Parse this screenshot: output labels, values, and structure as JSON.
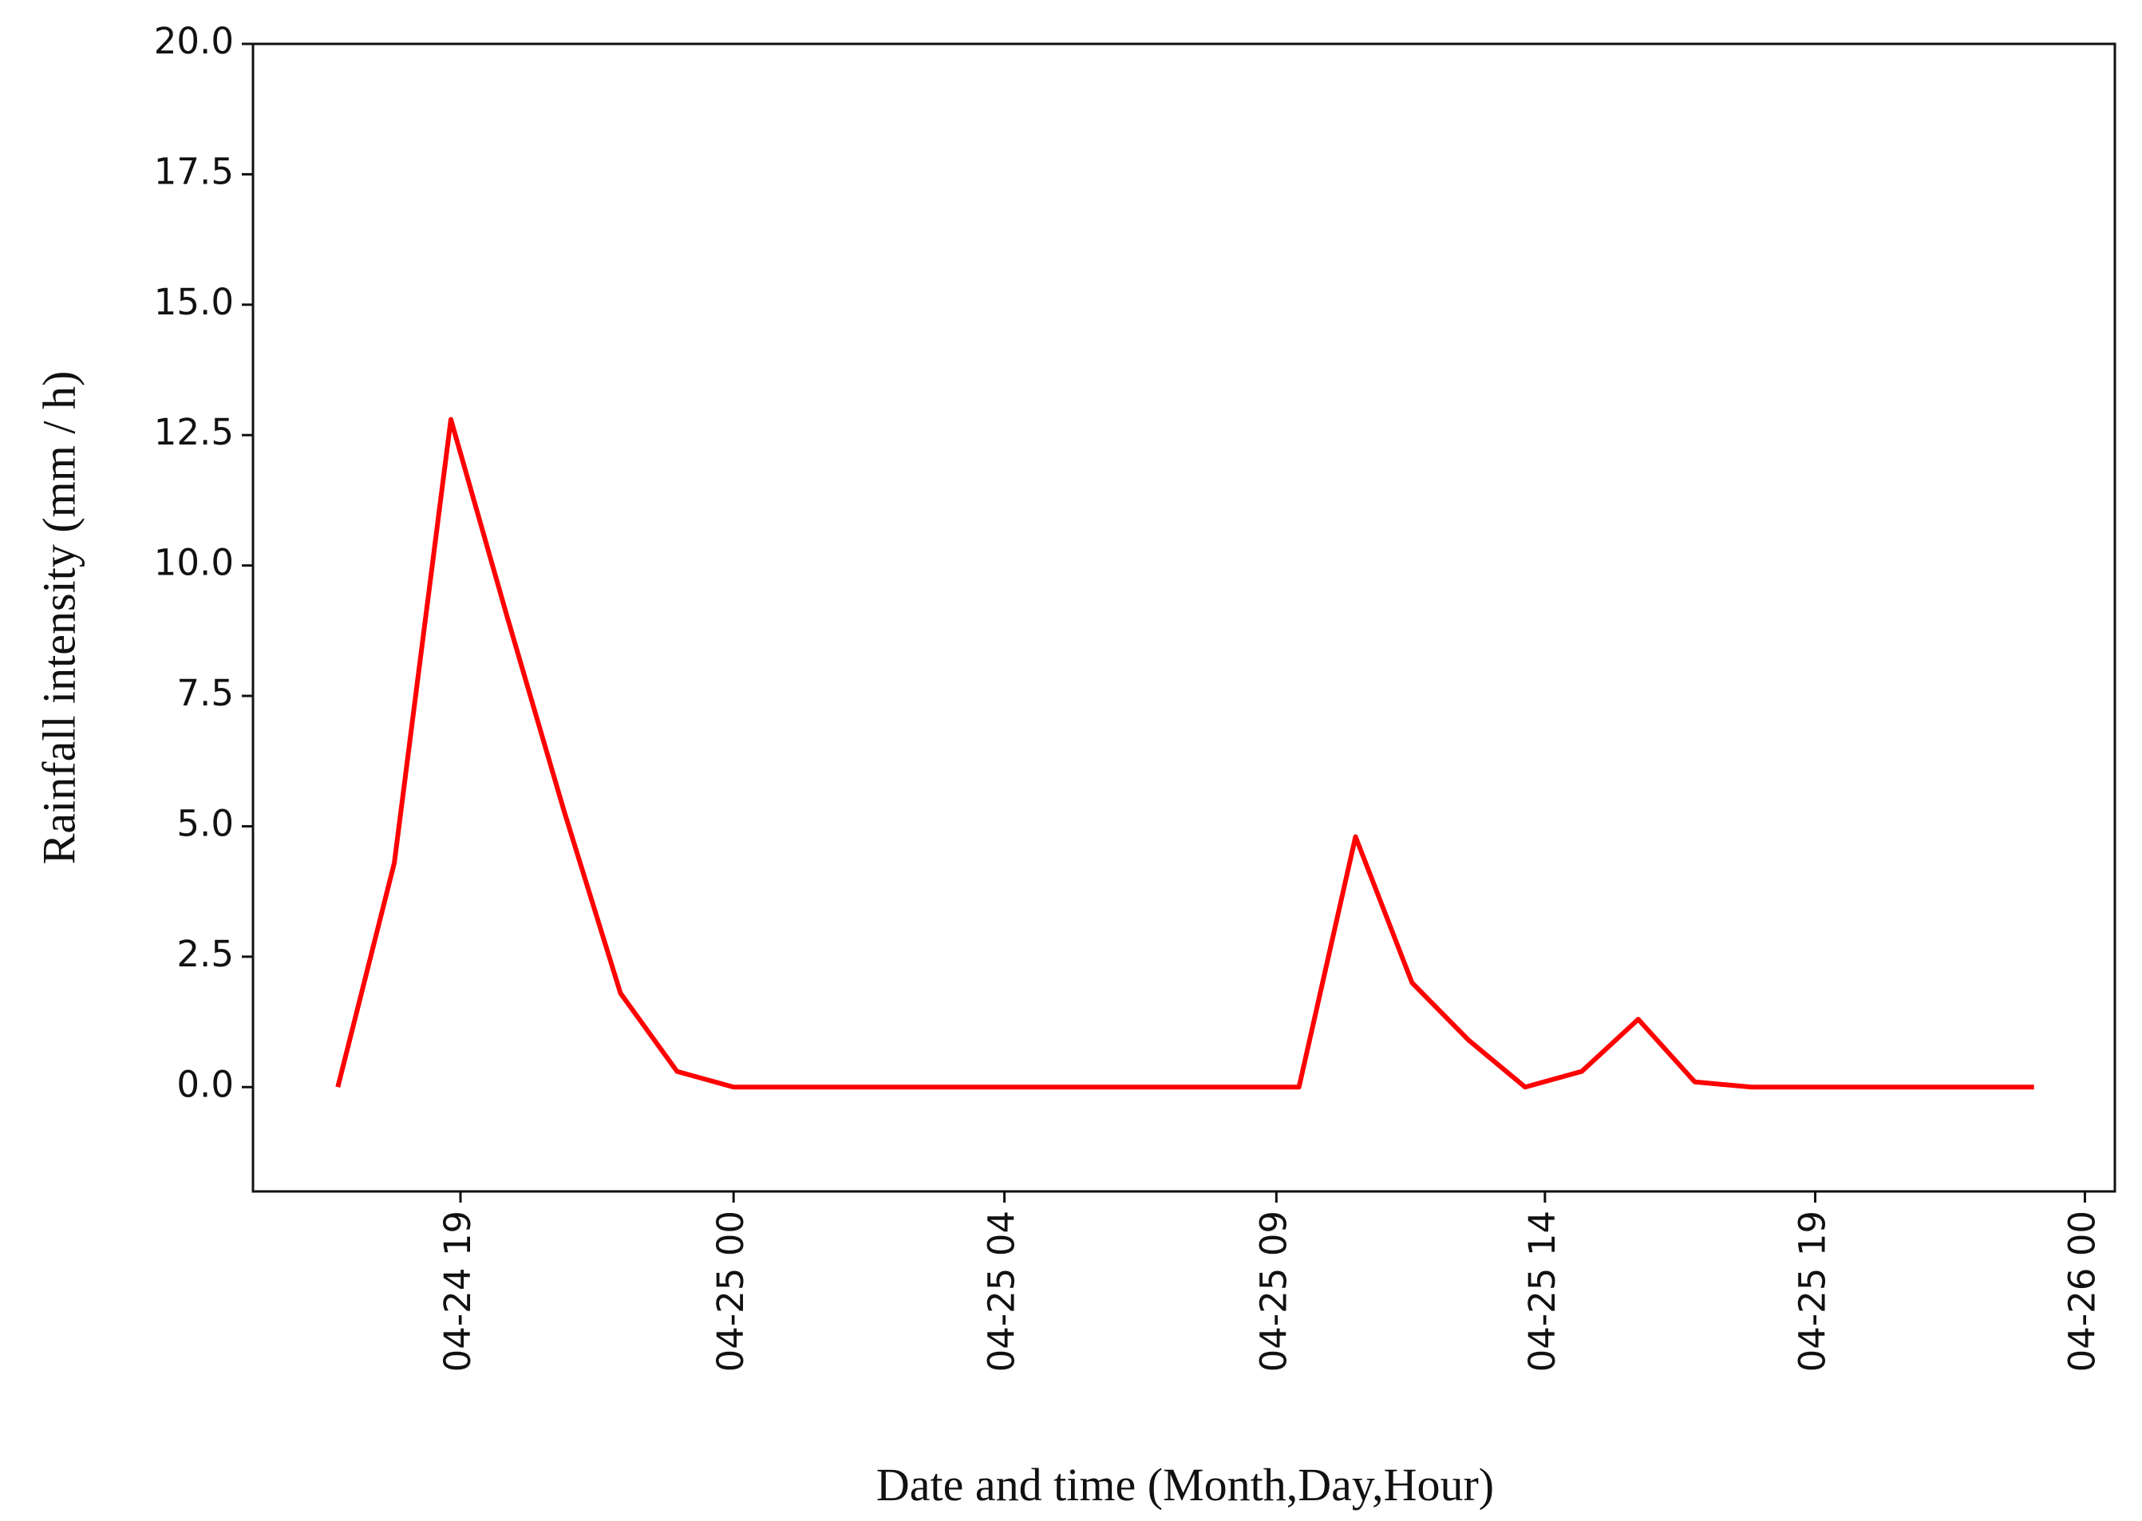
{
  "chart_data": {
    "type": "line",
    "x_label": "Date and time (Month,Day,Hour)",
    "y_label": "Rainfall intensity (mm / h)",
    "x": [
      17,
      18,
      19,
      20,
      21,
      22,
      23,
      24,
      25,
      26,
      27,
      28,
      29,
      30,
      31,
      32,
      33,
      34,
      35,
      36,
      37,
      38,
      39,
      40,
      41,
      42,
      43,
      44,
      45,
      46,
      47
    ],
    "series": [
      {
        "color": "#ff0000",
        "values": [
          0,
          4.3,
          12.8,
          9.0,
          5.3,
          1.8,
          0.3,
          0,
          0,
          0,
          0,
          0,
          0,
          0,
          0,
          0,
          0,
          0,
          4.8,
          2.0,
          0.9,
          0,
          0.3,
          1.3,
          0.1,
          0,
          0,
          0,
          0,
          0,
          0
        ]
      }
    ],
    "xlim": [
      15.5,
      48.43
    ],
    "xticks": [
      {
        "value": 19.17,
        "label": "04-24 19"
      },
      {
        "value": 24.0,
        "label": "04-25 00"
      },
      {
        "value": 28.79,
        "label": "04-25 04"
      },
      {
        "value": 33.6,
        "label": "04-25 09"
      },
      {
        "value": 38.35,
        "label": "04-25 14"
      },
      {
        "value": 43.13,
        "label": "04-25 19"
      },
      {
        "value": 47.9,
        "label": "04-26 00"
      }
    ],
    "ylim": [
      -2,
      20
    ],
    "yticks": [
      {
        "value": 0,
        "label": "0.0"
      },
      {
        "value": 2.5,
        "label": "2.5"
      },
      {
        "value": 5,
        "label": "5.0"
      },
      {
        "value": 7.5,
        "label": "7.5"
      },
      {
        "value": 10,
        "label": "10.0"
      },
      {
        "value": 12.5,
        "label": "12.5"
      },
      {
        "value": 15,
        "label": "15.0"
      },
      {
        "value": 17.5,
        "label": "17.5"
      },
      {
        "value": 20,
        "label": "20.0"
      }
    ]
  }
}
